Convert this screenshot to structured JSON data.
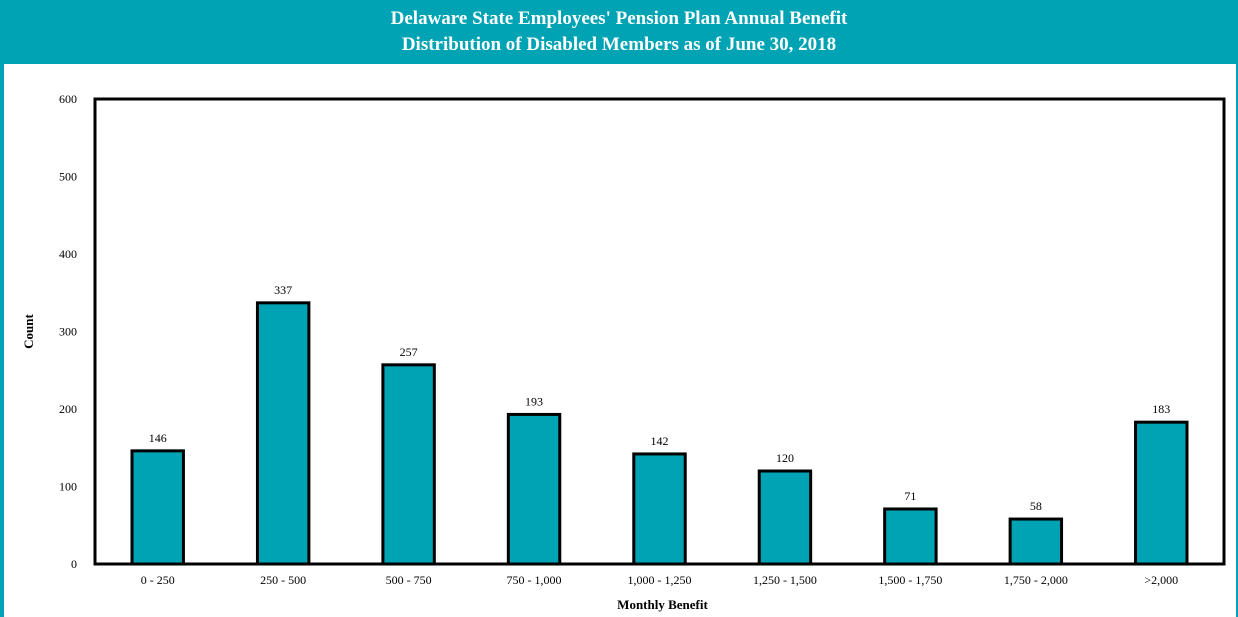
{
  "header": {
    "title_line1": "Delaware State Employees' Pension Plan Annual Benefit",
    "title_line2": "Distribution of Disabled Members as of June 30, 2018"
  },
  "colors": {
    "accent": "#00a3b4",
    "bar": "#00a3b4",
    "outline": "#000000"
  },
  "chart_data": {
    "type": "bar",
    "title": "Delaware State Employees' Pension Plan Annual Benefit Distribution of Disabled Members as of June 30, 2018",
    "xlabel": "Monthly Benefit",
    "ylabel": "Count",
    "categories": [
      "0 - 250",
      "250 - 500",
      "500 - 750",
      "750 - 1,000",
      "1,000 - 1,250",
      "1,250 - 1,500",
      "1,500 - 1,750",
      "1,750 - 2,000",
      ">2,000"
    ],
    "values": [
      146,
      337,
      257,
      193,
      142,
      120,
      71,
      58,
      183
    ],
    "ylim": [
      0,
      600
    ],
    "yticks": [
      0,
      100,
      200,
      300,
      400,
      500,
      600
    ],
    "grid": false,
    "legend": "none"
  }
}
